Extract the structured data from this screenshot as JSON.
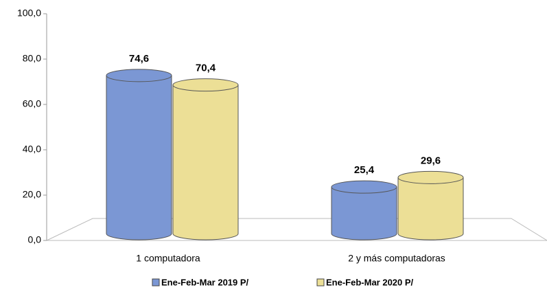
{
  "chart_data": {
    "type": "bar",
    "categories": [
      "1 computadora",
      "2 y más computadoras"
    ],
    "series": [
      {
        "name": "Ene-Feb-Mar 2019 P/",
        "color": "#7b97d4",
        "values": [
          74.6,
          25.4
        ],
        "value_labels": [
          "74,6",
          "25,4"
        ]
      },
      {
        "name": "Ene-Feb-Mar 2020 P/",
        "color": "#ecdf96",
        "values": [
          70.4,
          29.6
        ],
        "value_labels": [
          "70,4",
          "29,6"
        ]
      }
    ],
    "ylim": [
      0,
      100
    ],
    "yticks": [
      {
        "value": 0,
        "label": "0,0"
      },
      {
        "value": 20,
        "label": "20,0"
      },
      {
        "value": 40,
        "label": "40,0"
      },
      {
        "value": 60,
        "label": "60,0"
      },
      {
        "value": 80,
        "label": "80,0"
      },
      {
        "value": 100,
        "label": "100,0"
      }
    ],
    "legend": "bottom"
  }
}
